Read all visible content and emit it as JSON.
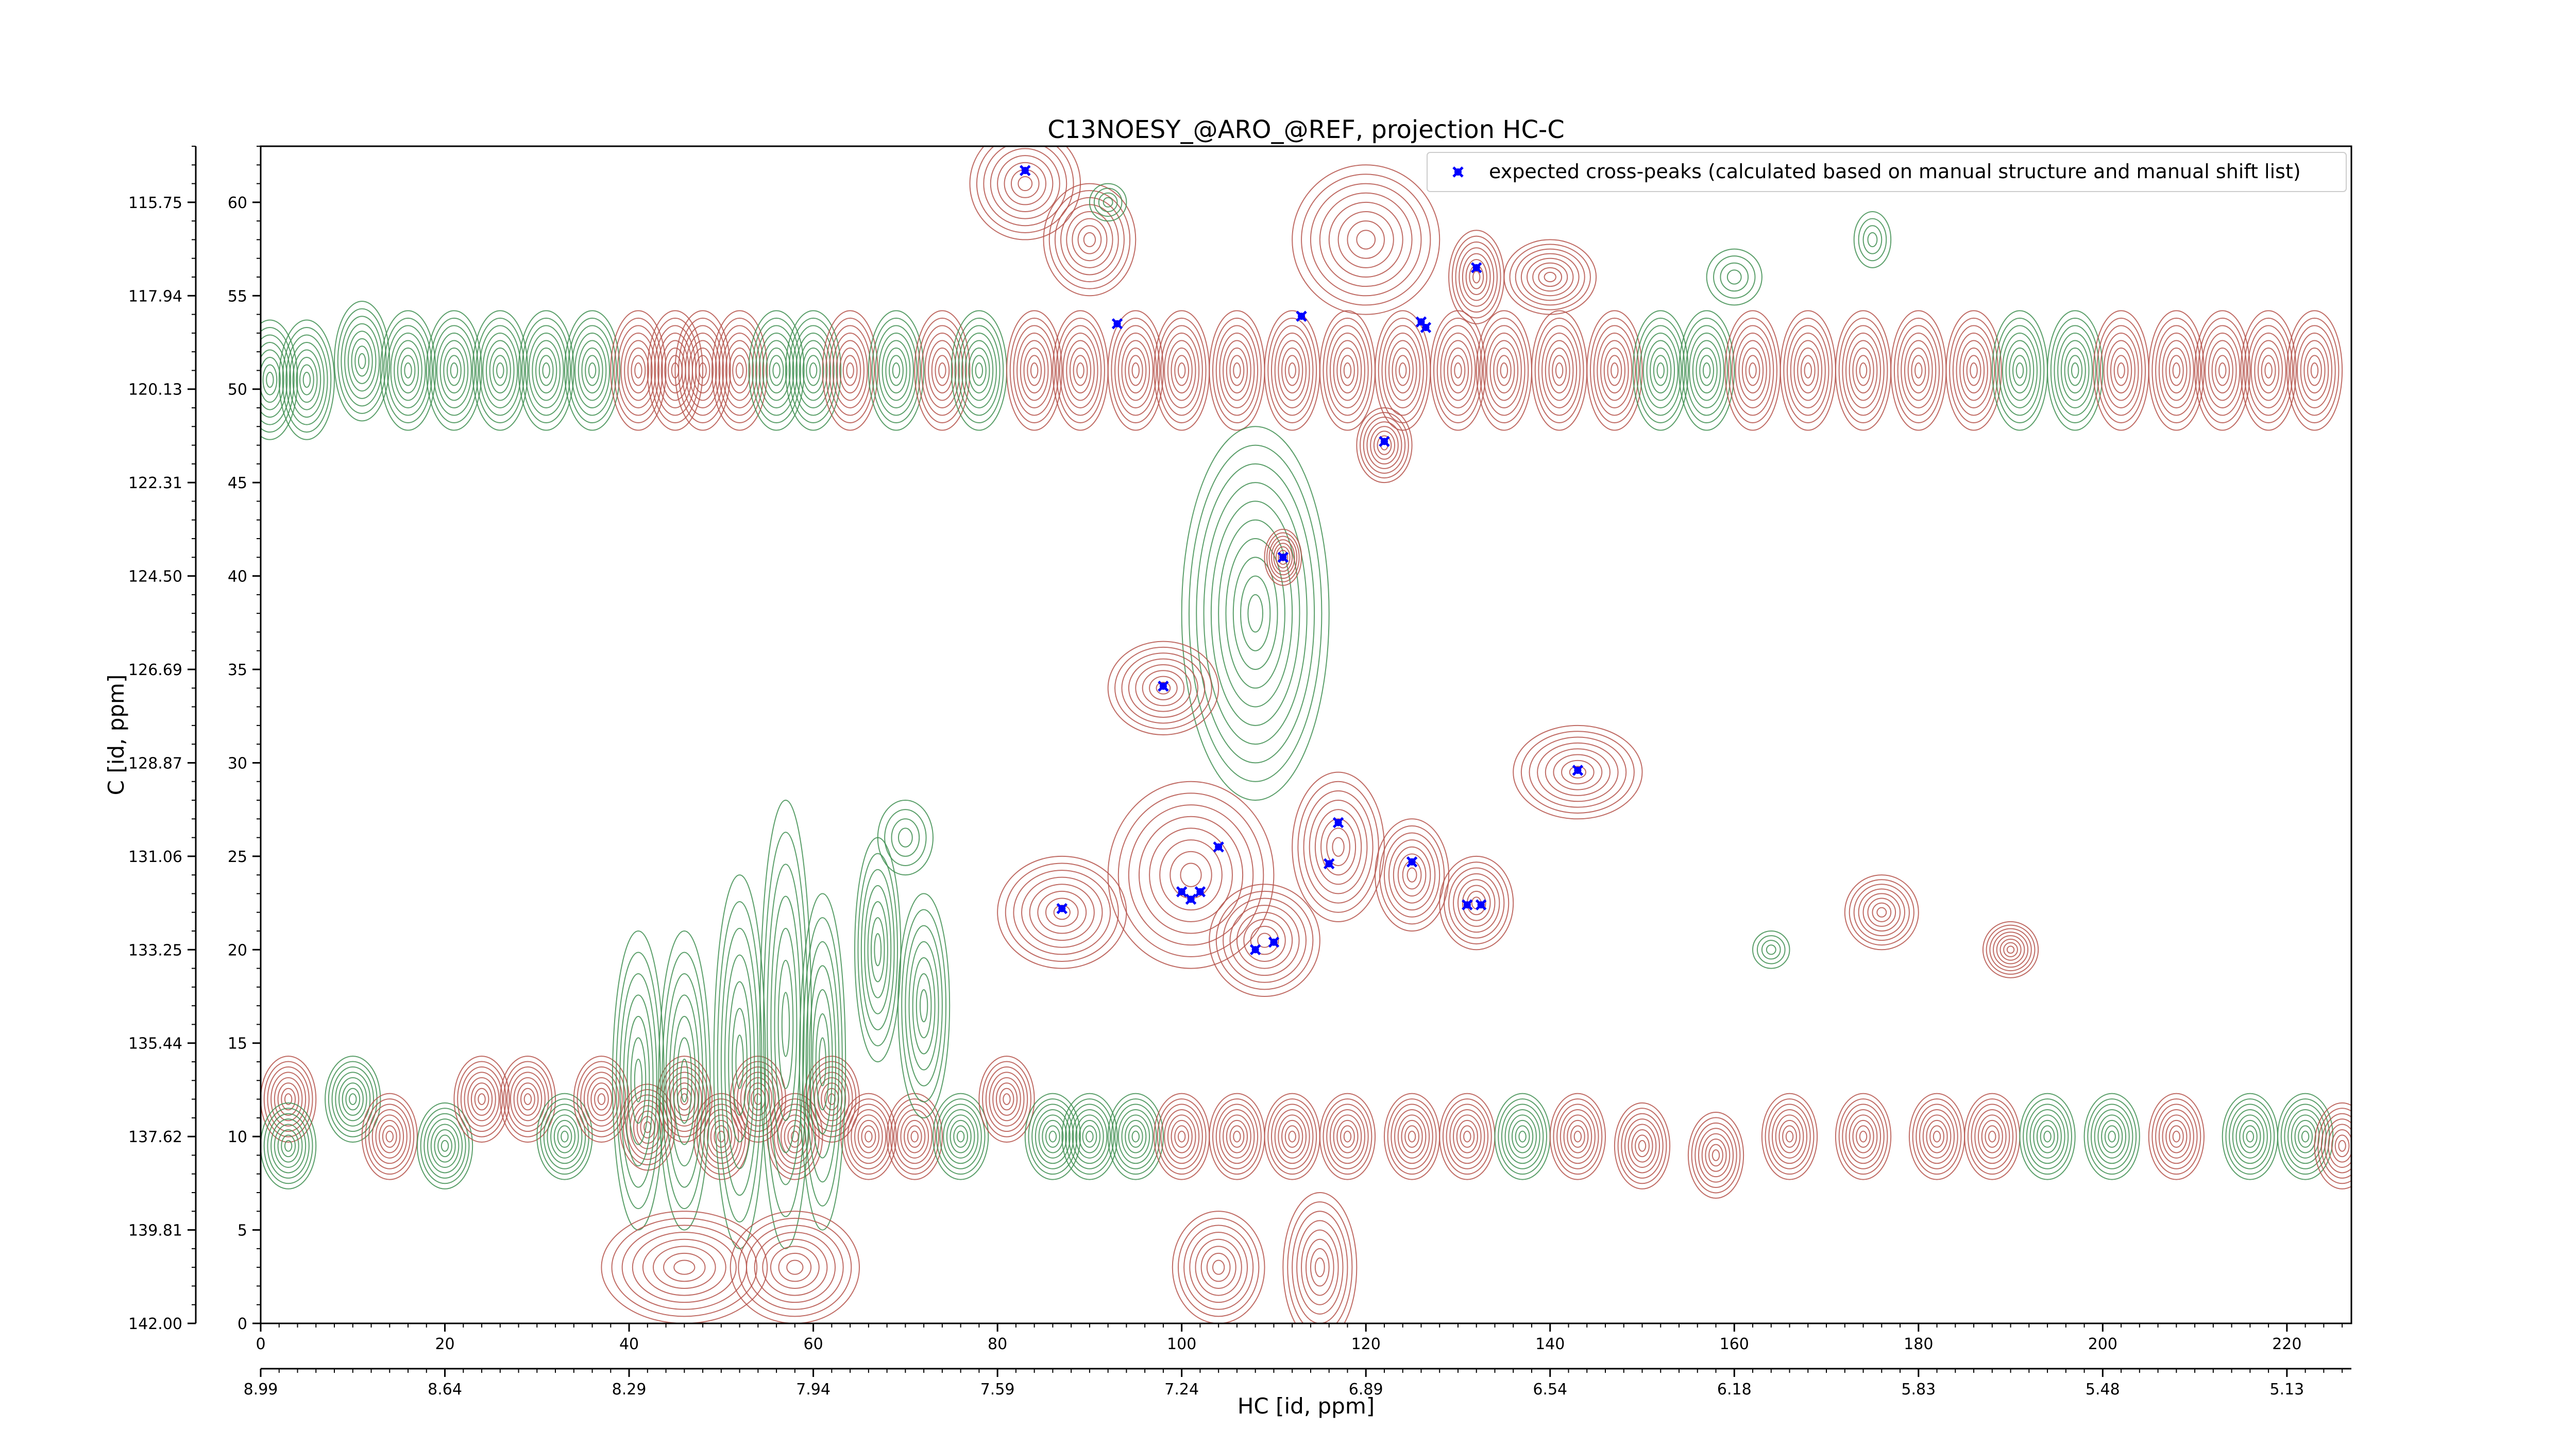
{
  "chart_data": {
    "type": "scatter",
    "title": "C13NOESY_@ARO_@REF, projection HC-C",
    "xlabel": "HC [id, ppm]",
    "ylabel": "C [id, ppm]",
    "x_index_range": [
      0,
      227
    ],
    "y_index_range": [
      0,
      63
    ],
    "x_index_ticks": [
      "0",
      "20",
      "40",
      "60",
      "80",
      "100",
      "120",
      "140",
      "160",
      "180",
      "200",
      "220"
    ],
    "x_ppm_ticks": [
      "8.99",
      "8.64",
      "8.29",
      "7.94",
      "7.59",
      "7.24",
      "6.89",
      "6.54",
      "6.18",
      "5.83",
      "5.48",
      "5.13"
    ],
    "y_index_ticks": [
      "0",
      "5",
      "10",
      "15",
      "20",
      "25",
      "30",
      "35",
      "40",
      "45",
      "50",
      "55",
      "60"
    ],
    "y_ppm_ticks": [
      "142.00",
      "139.81",
      "137.62",
      "135.44",
      "133.25",
      "131.06",
      "128.87",
      "126.69",
      "124.50",
      "122.31",
      "120.13",
      "117.94",
      "115.75"
    ],
    "legend": {
      "label": "expected cross-peaks (calculated based on manual structure and manual shift list)",
      "position": "top-right"
    },
    "series": [
      {
        "name": "expected cross-peaks (calculated based on manual structure and manual shift list)",
        "color": "#0000ff",
        "marker": "x",
        "points": [
          [
            83,
            61.7
          ],
          [
            93,
            53.5
          ],
          [
            113,
            53.9
          ],
          [
            126,
            53.6
          ],
          [
            126.5,
            53.3
          ],
          [
            132,
            56.5
          ],
          [
            122,
            47.2
          ],
          [
            111,
            41
          ],
          [
            98,
            34.1
          ],
          [
            143,
            29.6
          ],
          [
            104,
            25.5
          ],
          [
            117,
            26.8
          ],
          [
            116,
            24.6
          ],
          [
            125,
            24.7
          ],
          [
            87,
            22.2
          ],
          [
            100,
            23.1
          ],
          [
            102,
            23.1
          ],
          [
            101,
            22.7
          ],
          [
            131,
            22.4
          ],
          [
            132.5,
            22.4
          ],
          [
            108,
            20
          ],
          [
            110,
            20.4
          ]
        ]
      }
    ],
    "contour_colors": {
      "positive": "#b5524a",
      "negative": "#3e8e50"
    }
  }
}
